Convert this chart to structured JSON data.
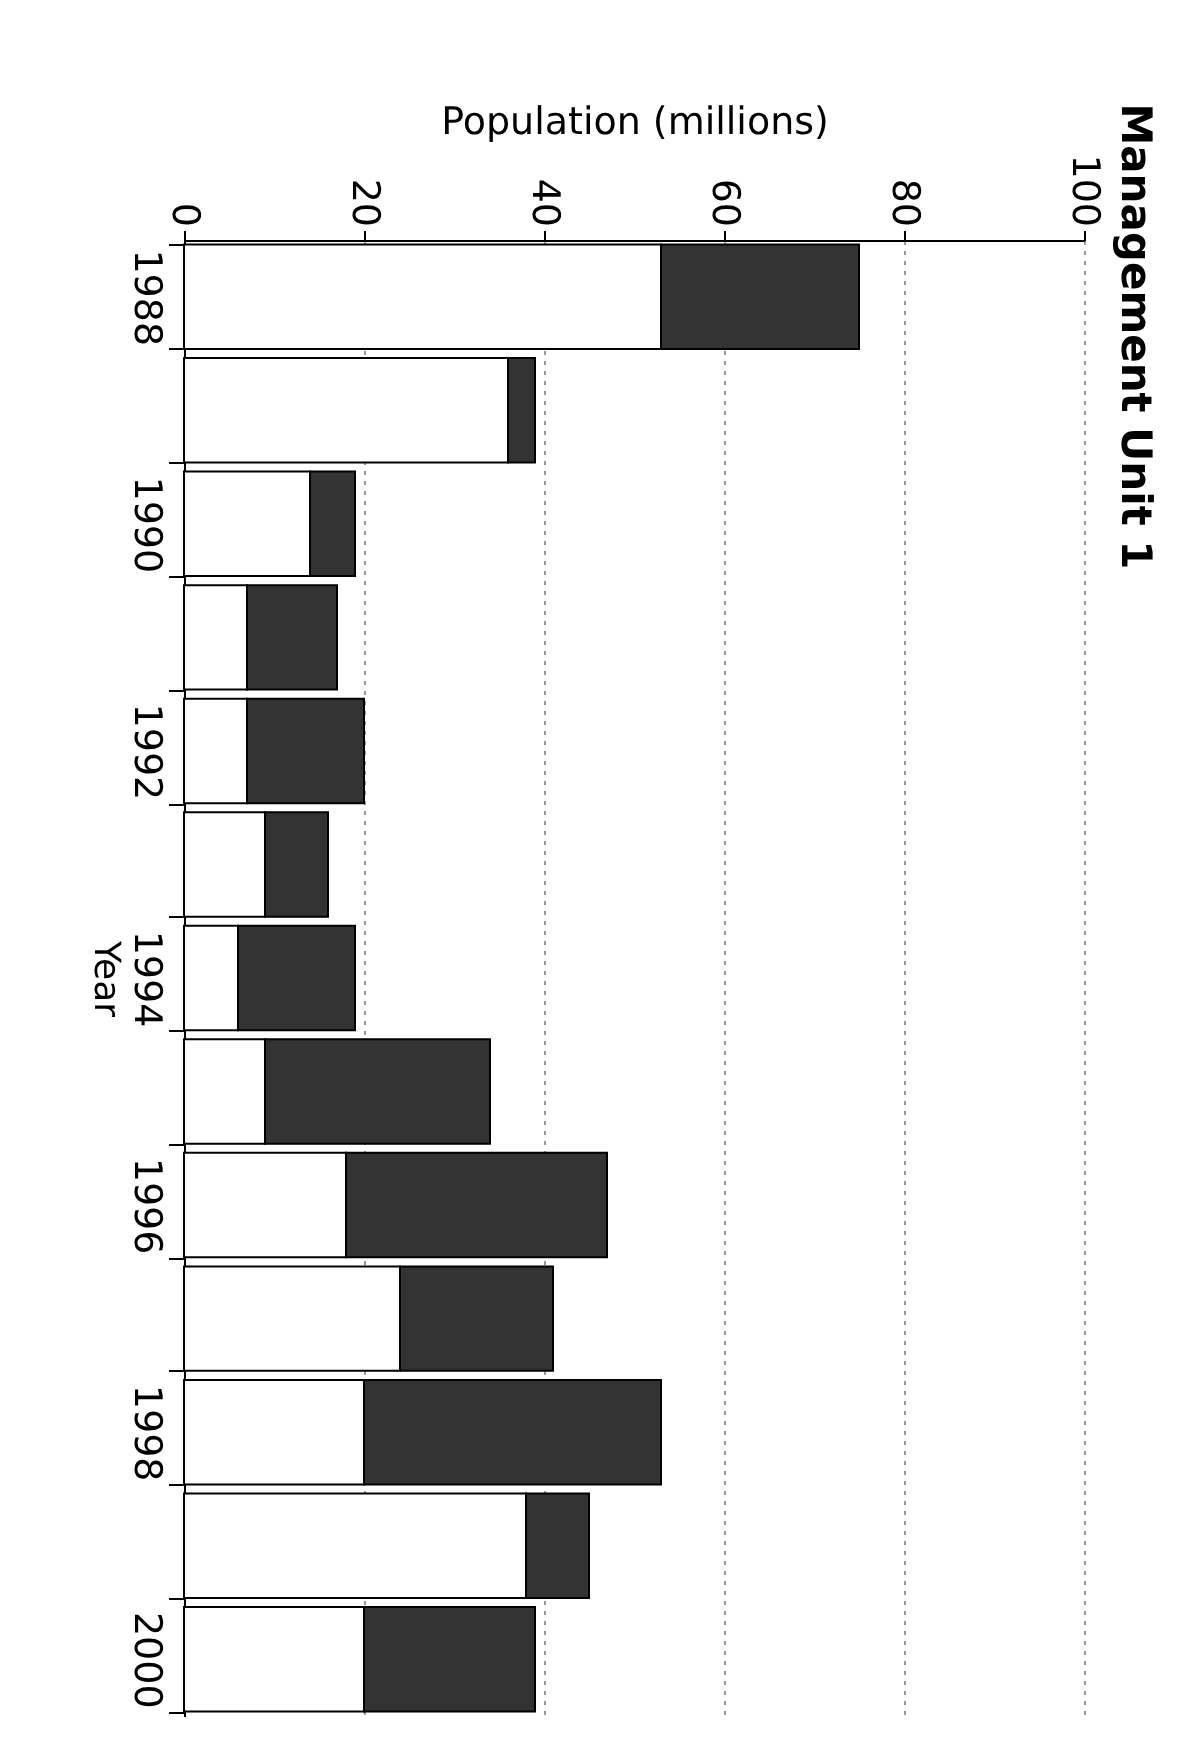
{
  "chart_data": {
    "type": "bar",
    "orientation": "horizontal",
    "title": "Management Unit 1",
    "ylabel": "Year",
    "xlabel": "Population (millions)",
    "categories": [
      "1988",
      null,
      "1990",
      null,
      "1992",
      null,
      "1994",
      null,
      "1996",
      null,
      "1998",
      null,
      "2000"
    ],
    "stacked": true,
    "series": [
      {
        "color": "#ffffff",
        "values": [
          53,
          36,
          14,
          7,
          7,
          9,
          6,
          9,
          18,
          24,
          20,
          38,
          20
        ]
      },
      {
        "color": "#333333",
        "values": [
          22,
          3,
          5,
          10,
          13,
          7,
          13,
          25,
          29,
          17,
          33,
          7,
          19
        ]
      }
    ],
    "xlim": [
      0,
      100
    ],
    "xticks": [
      0,
      20,
      40,
      60,
      80,
      100
    ],
    "grid": "x"
  }
}
